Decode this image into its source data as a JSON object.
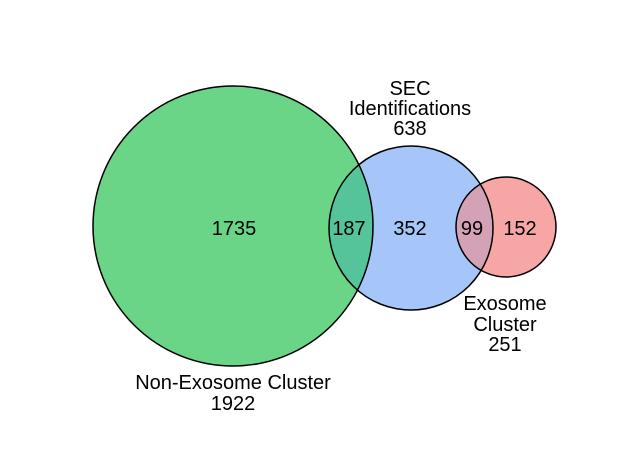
{
  "sets": {
    "non_exosome": {
      "label_line1": "Non-Exosome Cluster",
      "total": "1922",
      "color": "#6ad586"
    },
    "sec": {
      "label_line1": "SEC",
      "label_line2": "Identifications",
      "total": "638",
      "color": "#a6c6fa"
    },
    "exosome": {
      "label_line1": "Exosome",
      "label_line2": "Cluster",
      "total": "251",
      "color": "#f7a6a6"
    }
  },
  "regions": {
    "non_exosome_only": "1735",
    "non_exosome_and_sec": "187",
    "sec_only": "352",
    "sec_and_exosome": "99",
    "exosome_only": "152"
  },
  "overlap_colors": {
    "non_exosome_and_sec": "#55c49b",
    "sec_and_exosome": "#d3a2b6"
  }
}
